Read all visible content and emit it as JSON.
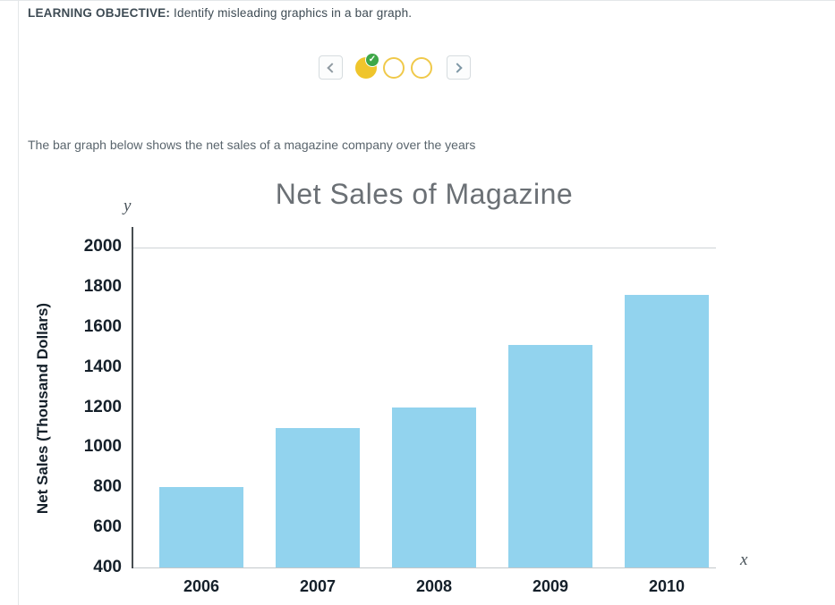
{
  "header": {
    "objective_label": "LEARNING OBJECTIVE:",
    "objective_text": " Identify misleading graphics in a bar graph."
  },
  "pager": {
    "dots": [
      {
        "state": "completed",
        "badge_icon": "check"
      },
      {
        "state": "incomplete"
      },
      {
        "state": "incomplete"
      }
    ],
    "icons": {
      "prev": "chevron-left",
      "next": "chevron-right",
      "check_glyph": "✓"
    }
  },
  "description": "The bar graph below shows the net sales of a magazine company over the years",
  "chart_data": {
    "type": "bar",
    "title": "Net Sales of Magazine",
    "categories": [
      "2006",
      "2007",
      "2008",
      "2009",
      "2010"
    ],
    "values": [
      800,
      1095,
      1200,
      1510,
      1760
    ],
    "ylabel": "Net Sales (Thousand Dollars)",
    "y_axis_symbol": "y",
    "x_axis_symbol": "x",
    "ylim": [
      400,
      2000
    ],
    "yticks": [
      400,
      600,
      800,
      1000,
      1200,
      1400,
      1600,
      1800,
      2000
    ],
    "grid": "top-gridline-only",
    "legend": "none",
    "bar_color": "#92d3ee"
  },
  "colors": {
    "accent_yellow": "#efc52c",
    "check_green": "#3ea748",
    "bar_blue": "#92d3ee"
  }
}
